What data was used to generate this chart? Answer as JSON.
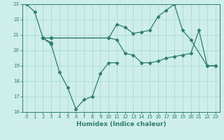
{
  "xlabel": "Humidex (Indice chaleur)",
  "xlim": [
    -0.5,
    23.5
  ],
  "ylim": [
    16,
    23
  ],
  "yticks": [
    16,
    17,
    18,
    19,
    20,
    21,
    22,
    23
  ],
  "xticks": [
    0,
    1,
    2,
    3,
    4,
    5,
    6,
    7,
    8,
    9,
    10,
    11,
    12,
    13,
    14,
    15,
    16,
    17,
    18,
    19,
    20,
    21,
    22,
    23
  ],
  "bg_color": "#ceeee9",
  "line_color": "#2e7d6e",
  "grid_color": "#a8d8d0",
  "series": [
    {
      "x": [
        0,
        1,
        2,
        3
      ],
      "y": [
        23.0,
        22.5,
        20.8,
        20.5
      ]
    },
    {
      "x": [
        2,
        3,
        4,
        5,
        6,
        7,
        8,
        9,
        10,
        11
      ],
      "y": [
        20.8,
        20.4,
        18.6,
        17.6,
        16.2,
        16.8,
        17.0,
        18.5,
        19.2,
        19.2
      ]
    },
    {
      "x": [
        2,
        3,
        10,
        11,
        12,
        13,
        14,
        15,
        16,
        17,
        18,
        19,
        20,
        22,
        23
      ],
      "y": [
        20.8,
        20.8,
        20.8,
        21.7,
        21.5,
        21.1,
        21.2,
        21.3,
        22.2,
        22.6,
        23.0,
        21.3,
        20.7,
        19.0,
        19.0
      ]
    },
    {
      "x": [
        2,
        3,
        10,
        11,
        12,
        13,
        14,
        15,
        16,
        17,
        18,
        19,
        20,
        21,
        22,
        23
      ],
      "y": [
        20.8,
        20.8,
        20.8,
        20.7,
        19.8,
        19.7,
        19.2,
        19.2,
        19.3,
        19.5,
        19.6,
        19.7,
        19.8,
        21.3,
        19.0,
        19.0
      ]
    }
  ]
}
